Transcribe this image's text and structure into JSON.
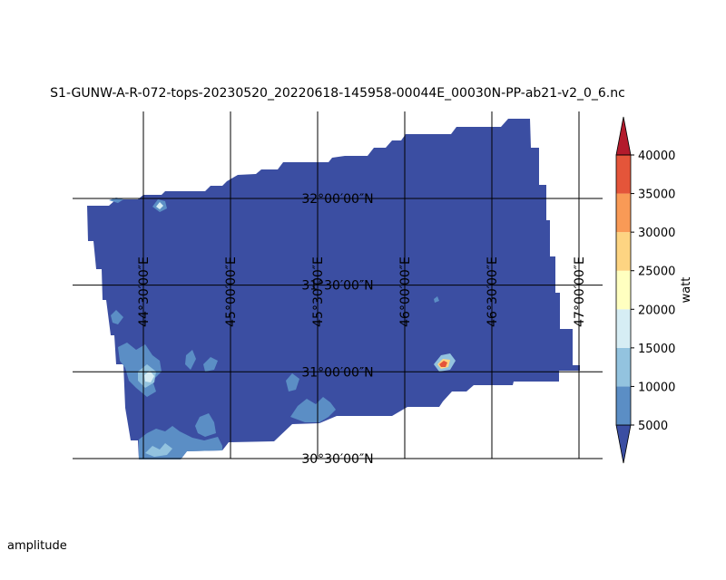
{
  "footer_label": "amplitude",
  "chart_data": {
    "type": "heatmap",
    "title": "S1-GUNW-A-R-072-tops-20230520_20220618-145958-00044E_00030N-PP-ab21-v2_0_6.nc",
    "lon_ticks": [
      44.5,
      45.0,
      45.5,
      46.0,
      46.5,
      47.0
    ],
    "lon_labels": [
      "44°30′00″E",
      "45°00′00″E",
      "45°30′00″E",
      "46°00′00″E",
      "46°30′00″E",
      "47°00′00″E"
    ],
    "lat_ticks": [
      32.0,
      31.5,
      31.0,
      30.5
    ],
    "lat_labels": [
      "32°00′00″N",
      "31°30′00″N",
      "31°00′00″N",
      "30°30′00″N"
    ],
    "lon_range": [
      44.09,
      47.14
    ],
    "lat_range": [
      30.5,
      32.0
    ],
    "colorbar": {
      "label": "watt",
      "levels": [
        0,
        5000,
        10000,
        15000,
        20000,
        25000,
        30000,
        35000,
        40000,
        45000
      ],
      "tick_values": [
        5000,
        10000,
        15000,
        20000,
        25000,
        30000,
        35000,
        40000
      ],
      "tick_labels": [
        "5000",
        "10000",
        "15000",
        "20000",
        "25000",
        "30000",
        "35000",
        "40000"
      ],
      "colors": [
        "#3b4ea2",
        "#5b8ec5",
        "#93c3df",
        "#d6edf4",
        "#ffffc0",
        "#fdd482",
        "#f99a56",
        "#e4553a",
        "#b31b2c"
      ],
      "extend": "both"
    },
    "background_value_range": [
      0,
      5000
    ],
    "notable_features": [
      {
        "lon": 44.59,
        "lat": 31.96,
        "peak": 17000
      },
      {
        "lon": 44.54,
        "lat": 30.99,
        "peak": 16000
      },
      {
        "lon": 46.2,
        "lat": 31.04,
        "peak": 42000
      }
    ]
  }
}
